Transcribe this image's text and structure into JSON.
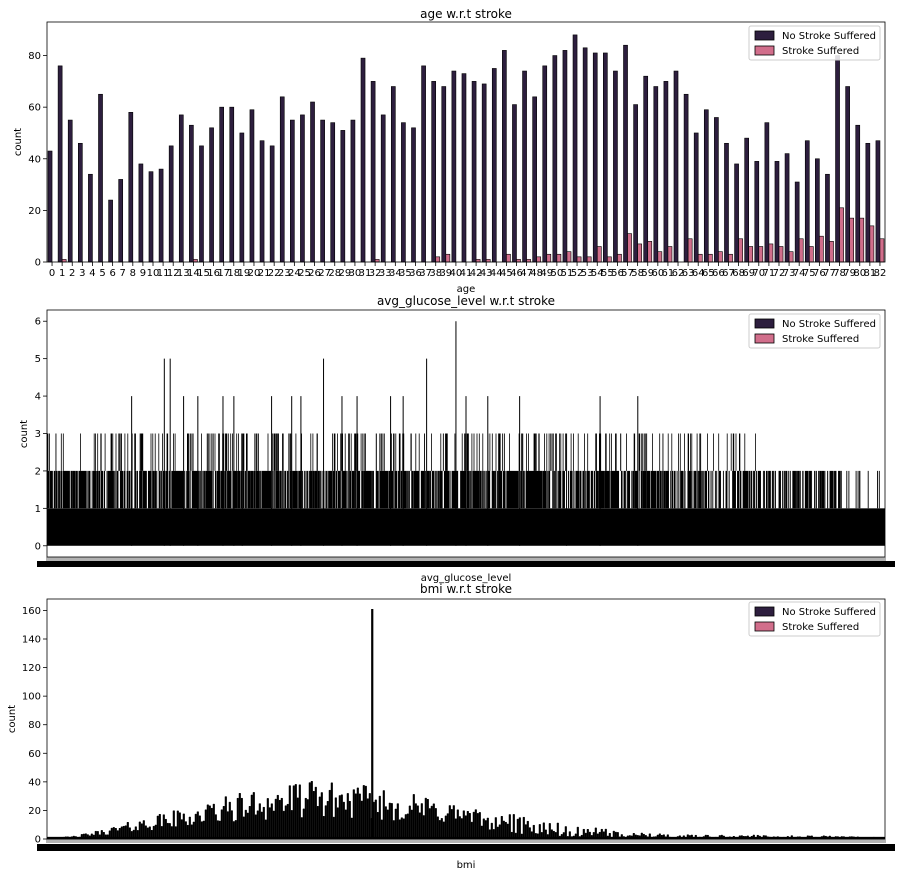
{
  "colors": {
    "no_stroke": "#2d1e3e",
    "stroke": "#d16e8b",
    "edge": "#000000"
  },
  "chart_data": [
    {
      "type": "bar",
      "title": "age w.r.t stroke",
      "xlabel": "age",
      "ylabel": "count",
      "ylim": [
        0,
        93
      ],
      "yticks": [
        0,
        20,
        40,
        60,
        80
      ],
      "legend": "top-right",
      "categories": [
        "0",
        "1",
        "2",
        "3",
        "4",
        "5",
        "6",
        "7",
        "8",
        "9",
        "10",
        "11",
        "12",
        "13",
        "14",
        "15",
        "16",
        "17",
        "18",
        "19",
        "20",
        "21",
        "22",
        "23",
        "24",
        "25",
        "26",
        "27",
        "28",
        "29",
        "30",
        "31",
        "32",
        "33",
        "34",
        "35",
        "36",
        "37",
        "38",
        "39",
        "40",
        "41",
        "42",
        "43",
        "44",
        "45",
        "46",
        "47",
        "48",
        "49",
        "50",
        "51",
        "52",
        "53",
        "54",
        "55",
        "56",
        "57",
        "58",
        "59",
        "60",
        "61",
        "62",
        "63",
        "64",
        "65",
        "66",
        "67",
        "68",
        "69",
        "70",
        "71",
        "72",
        "73",
        "74",
        "75",
        "76",
        "77",
        "78",
        "79",
        "80",
        "81",
        "82"
      ],
      "series": [
        {
          "name": "No Stroke Suffered",
          "values": [
            43,
            76,
            55,
            46,
            34,
            65,
            24,
            32,
            58,
            38,
            35,
            36,
            45,
            57,
            53,
            45,
            52,
            60,
            60,
            50,
            59,
            47,
            45,
            64,
            55,
            57,
            62,
            55,
            54,
            51,
            55,
            79,
            70,
            57,
            68,
            54,
            52,
            76,
            70,
            68,
            74,
            73,
            70,
            69,
            75,
            82,
            61,
            74,
            64,
            76,
            80,
            82,
            88,
            83,
            81,
            81,
            74,
            84,
            61,
            72,
            68,
            70,
            74,
            65,
            50,
            59,
            56,
            46,
            38,
            48,
            39,
            54,
            39,
            42,
            31,
            47,
            40,
            34,
            80,
            68,
            53,
            46,
            47
          ]
        },
        {
          "name": "Stroke Suffered",
          "values": [
            0,
            1,
            0,
            0,
            0,
            0,
            0,
            0,
            0,
            0,
            0,
            0,
            0,
            0,
            1,
            0,
            0,
            0,
            0,
            0,
            0,
            0,
            0,
            0,
            0,
            0,
            0,
            0,
            0,
            0,
            0,
            0,
            1,
            0,
            0,
            0,
            0,
            0,
            2,
            3,
            0,
            0,
            1,
            1,
            0,
            3,
            1,
            1,
            2,
            3,
            3,
            4,
            2,
            2,
            6,
            2,
            3,
            11,
            7,
            8,
            4,
            6,
            0,
            9,
            3,
            3,
            4,
            3,
            9,
            6,
            6,
            7,
            6,
            4,
            9,
            6,
            10,
            8,
            21,
            17,
            17,
            14,
            9
          ]
        }
      ]
    },
    {
      "type": "bar",
      "title": "avg_glucose_level w.r.t stroke",
      "xlabel": "avg_glucose_level",
      "ylabel": "count",
      "ylim": [
        -0.3,
        6.3
      ],
      "yticks": [
        0,
        1,
        2,
        3,
        4,
        5,
        6
      ],
      "legend": "top-right",
      "category_count": 3979,
      "count_peaks": [
        {
          "position": 0.101,
          "count": 4
        },
        {
          "position": 0.14,
          "count": 5
        },
        {
          "position": 0.147,
          "count": 5
        },
        {
          "position": 0.163,
          "count": 4
        },
        {
          "position": 0.18,
          "count": 4
        },
        {
          "position": 0.21,
          "count": 4
        },
        {
          "position": 0.223,
          "count": 4
        },
        {
          "position": 0.233,
          "count": 3
        },
        {
          "position": 0.268,
          "count": 4
        },
        {
          "position": 0.292,
          "count": 4
        },
        {
          "position": 0.303,
          "count": 4
        },
        {
          "position": 0.33,
          "count": 5
        },
        {
          "position": 0.352,
          "count": 4
        },
        {
          "position": 0.37,
          "count": 4
        },
        {
          "position": 0.41,
          "count": 4
        },
        {
          "position": 0.425,
          "count": 4
        },
        {
          "position": 0.453,
          "count": 5
        },
        {
          "position": 0.488,
          "count": 6
        },
        {
          "position": 0.5,
          "count": 4
        },
        {
          "position": 0.526,
          "count": 4
        },
        {
          "position": 0.564,
          "count": 4
        },
        {
          "position": 0.62,
          "count": 3
        },
        {
          "position": 0.66,
          "count": 4
        },
        {
          "position": 0.705,
          "count": 4
        }
      ]
    },
    {
      "type": "bar",
      "title": "bmi w.r.t stroke",
      "xlabel": "bmi",
      "ylabel": "count",
      "ylim": [
        0,
        168
      ],
      "yticks": [
        0,
        20,
        40,
        60,
        80,
        100,
        120,
        140,
        160
      ],
      "legend": "top-right",
      "category_count": 419,
      "outlier": {
        "position": 0.388,
        "count": 161
      },
      "envelope": [
        {
          "position": 0.0,
          "count": 0
        },
        {
          "position": 0.035,
          "count": 2
        },
        {
          "position": 0.07,
          "count": 6
        },
        {
          "position": 0.1,
          "count": 10
        },
        {
          "position": 0.14,
          "count": 15
        },
        {
          "position": 0.18,
          "count": 19
        },
        {
          "position": 0.22,
          "count": 25
        },
        {
          "position": 0.27,
          "count": 30
        },
        {
          "position": 0.32,
          "count": 33
        },
        {
          "position": 0.38,
          "count": 30
        },
        {
          "position": 0.43,
          "count": 26
        },
        {
          "position": 0.48,
          "count": 22
        },
        {
          "position": 0.53,
          "count": 14
        },
        {
          "position": 0.58,
          "count": 10
        },
        {
          "position": 0.62,
          "count": 7
        },
        {
          "position": 0.66,
          "count": 5
        },
        {
          "position": 0.7,
          "count": 3
        },
        {
          "position": 0.76,
          "count": 2
        },
        {
          "position": 0.85,
          "count": 2
        },
        {
          "position": 1.0,
          "count": 1
        }
      ]
    }
  ]
}
